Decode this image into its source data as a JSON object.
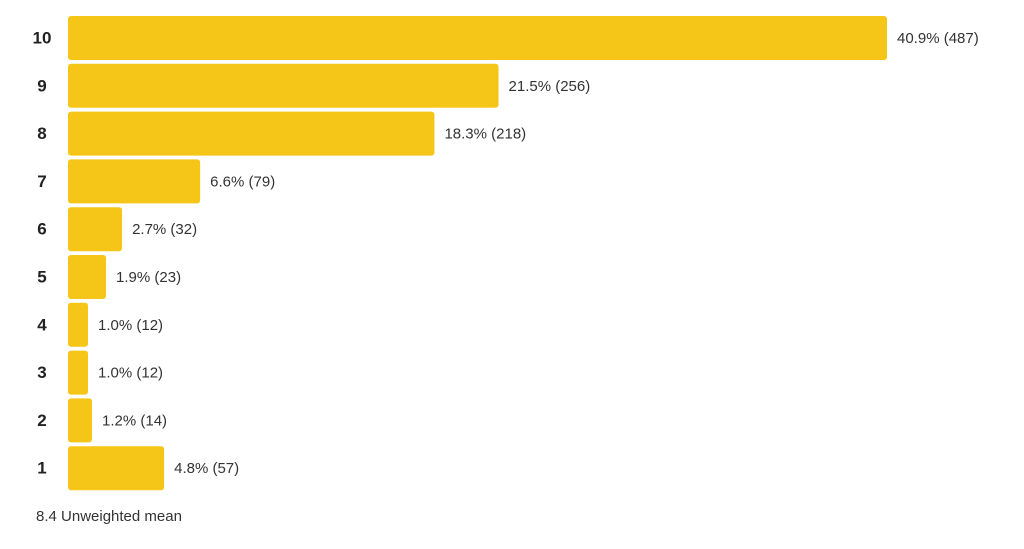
{
  "chart_data": {
    "type": "bar",
    "orientation": "horizontal",
    "categories": [
      "10",
      "9",
      "8",
      "7",
      "6",
      "5",
      "4",
      "3",
      "2",
      "1"
    ],
    "values": [
      40.9,
      21.5,
      18.3,
      6.6,
      2.7,
      1.9,
      1.0,
      1.0,
      1.2,
      4.8
    ],
    "value_labels": [
      "40.9% (487)",
      "21.5% (256)",
      "18.3% (218)",
      "6.6% (79)",
      "2.7% (32)",
      "1.9% (23)",
      "1.0% (12)",
      "1.0% (12)",
      "1.2% (14)",
      "4.8% (57)"
    ],
    "color": "#f5c518",
    "footnote": "8.4 Unweighted mean"
  }
}
